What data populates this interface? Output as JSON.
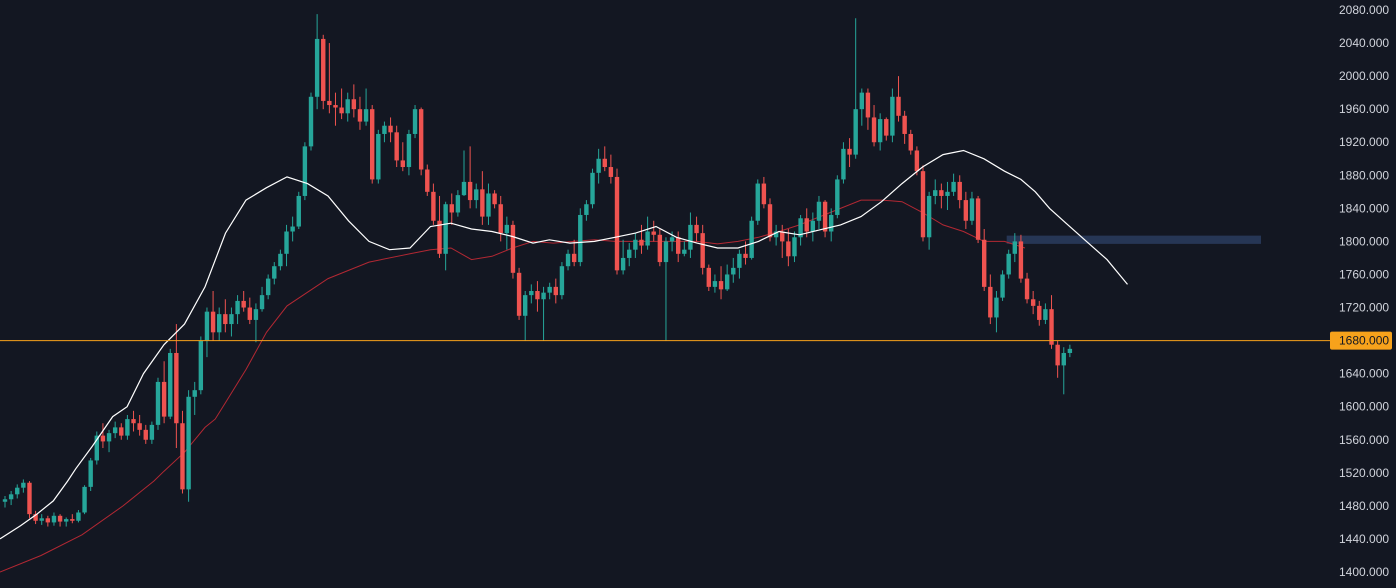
{
  "colors": {
    "background": "#131722",
    "up": "#26a69a",
    "down": "#ef5350",
    "ma_fast": "#ffffff",
    "ma_slow": "#b22833",
    "horizontal_line": "#f7a21b",
    "zone": "#2a3c5e",
    "axis_text": "#d1d4dc"
  },
  "chart_data": {
    "type": "candlestick",
    "y_axis": {
      "position": "right",
      "ticks": [
        "2080.000",
        "2040.000",
        "2000.000",
        "1960.000",
        "1920.000",
        "1880.000",
        "1840.000",
        "1800.000",
        "1760.000",
        "1720.000",
        "1680.000",
        "1640.000",
        "1600.000",
        "1560.000",
        "1520.000",
        "1480.000",
        "1440.000",
        "1400.000"
      ],
      "range": [
        1395,
        2088
      ]
    },
    "horizontal_line": {
      "price": 1680,
      "label": "1680.000"
    },
    "zone": {
      "from_candle": 164,
      "to_candle": 200,
      "low": 1797,
      "high": 1807
    },
    "candles": [
      [
        1485,
        1492,
        1478,
        1488
      ],
      [
        1488,
        1498,
        1481,
        1494
      ],
      [
        1494,
        1506,
        1489,
        1502
      ],
      [
        1502,
        1512,
        1496,
        1508
      ],
      [
        1508,
        1510,
        1465,
        1470
      ],
      [
        1470,
        1474,
        1458,
        1462
      ],
      [
        1462,
        1470,
        1457,
        1465
      ],
      [
        1465,
        1468,
        1455,
        1460
      ],
      [
        1460,
        1472,
        1456,
        1468
      ],
      [
        1468,
        1470,
        1455,
        1461
      ],
      [
        1461,
        1466,
        1455,
        1464
      ],
      [
        1464,
        1470,
        1459,
        1462
      ],
      [
        1462,
        1475,
        1460,
        1472
      ],
      [
        1472,
        1505,
        1470,
        1503
      ],
      [
        1503,
        1538,
        1498,
        1535
      ],
      [
        1535,
        1570,
        1530,
        1565
      ],
      [
        1565,
        1580,
        1550,
        1558
      ],
      [
        1558,
        1572,
        1545,
        1568
      ],
      [
        1568,
        1582,
        1562,
        1575
      ],
      [
        1575,
        1580,
        1560,
        1565
      ],
      [
        1565,
        1590,
        1560,
        1585
      ],
      [
        1585,
        1595,
        1570,
        1580
      ],
      [
        1580,
        1590,
        1565,
        1572
      ],
      [
        1572,
        1578,
        1555,
        1560
      ],
      [
        1560,
        1582,
        1555,
        1578
      ],
      [
        1578,
        1635,
        1572,
        1630
      ],
      [
        1630,
        1655,
        1580,
        1588
      ],
      [
        1588,
        1670,
        1585,
        1665
      ],
      [
        1665,
        1700,
        1550,
        1580
      ],
      [
        1580,
        1595,
        1495,
        1500
      ],
      [
        1500,
        1620,
        1485,
        1612
      ],
      [
        1612,
        1630,
        1590,
        1620
      ],
      [
        1620,
        1685,
        1615,
        1680
      ],
      [
        1680,
        1720,
        1660,
        1715
      ],
      [
        1715,
        1740,
        1680,
        1690
      ],
      [
        1690,
        1720,
        1680,
        1712
      ],
      [
        1712,
        1730,
        1690,
        1700
      ],
      [
        1700,
        1720,
        1685,
        1712
      ],
      [
        1712,
        1735,
        1700,
        1728
      ],
      [
        1728,
        1740,
        1715,
        1720
      ],
      [
        1720,
        1732,
        1700,
        1705
      ],
      [
        1705,
        1725,
        1678,
        1718
      ],
      [
        1718,
        1745,
        1715,
        1735
      ],
      [
        1735,
        1760,
        1730,
        1755
      ],
      [
        1755,
        1775,
        1748,
        1770
      ],
      [
        1770,
        1790,
        1765,
        1785
      ],
      [
        1785,
        1820,
        1770,
        1812
      ],
      [
        1812,
        1830,
        1800,
        1818
      ],
      [
        1818,
        1860,
        1815,
        1855
      ],
      [
        1855,
        1920,
        1850,
        1915
      ],
      [
        1915,
        1980,
        1910,
        1975
      ],
      [
        1975,
        2075,
        1960,
        2045
      ],
      [
        2045,
        2050,
        1960,
        1970
      ],
      [
        1970,
        2040,
        1955,
        1965
      ],
      [
        1965,
        1980,
        1940,
        1962
      ],
      [
        1962,
        1985,
        1948,
        1955
      ],
      [
        1955,
        1980,
        1945,
        1972
      ],
      [
        1972,
        1990,
        1950,
        1960
      ],
      [
        1960,
        1975,
        1935,
        1945
      ],
      [
        1945,
        1985,
        1940,
        1960
      ],
      [
        1960,
        1965,
        1870,
        1875
      ],
      [
        1875,
        1935,
        1870,
        1930
      ],
      [
        1930,
        1945,
        1920,
        1940
      ],
      [
        1940,
        1950,
        1920,
        1932
      ],
      [
        1932,
        1940,
        1890,
        1898
      ],
      [
        1898,
        1920,
        1885,
        1890
      ],
      [
        1890,
        1935,
        1880,
        1930
      ],
      [
        1930,
        1965,
        1925,
        1960
      ],
      [
        1960,
        1962,
        1880,
        1887
      ],
      [
        1887,
        1893,
        1855,
        1860
      ],
      [
        1860,
        1870,
        1820,
        1825
      ],
      [
        1825,
        1855,
        1780,
        1785
      ],
      [
        1785,
        1848,
        1765,
        1845
      ],
      [
        1845,
        1858,
        1820,
        1835
      ],
      [
        1835,
        1862,
        1830,
        1856
      ],
      [
        1856,
        1910,
        1855,
        1872
      ],
      [
        1872,
        1915,
        1840,
        1850
      ],
      [
        1850,
        1870,
        1840,
        1863
      ],
      [
        1863,
        1885,
        1820,
        1830
      ],
      [
        1830,
        1870,
        1820,
        1858
      ],
      [
        1858,
        1862,
        1840,
        1845
      ],
      [
        1845,
        1855,
        1800,
        1810
      ],
      [
        1810,
        1830,
        1790,
        1820
      ],
      [
        1820,
        1825,
        1755,
        1762
      ],
      [
        1762,
        1768,
        1705,
        1710
      ],
      [
        1710,
        1740,
        1680,
        1735
      ],
      [
        1735,
        1748,
        1725,
        1740
      ],
      [
        1740,
        1752,
        1715,
        1730
      ],
      [
        1730,
        1745,
        1680,
        1738
      ],
      [
        1738,
        1750,
        1730,
        1745
      ],
      [
        1745,
        1755,
        1725,
        1735
      ],
      [
        1735,
        1775,
        1730,
        1770
      ],
      [
        1770,
        1790,
        1765,
        1785
      ],
      [
        1785,
        1802,
        1770,
        1775
      ],
      [
        1775,
        1840,
        1770,
        1832
      ],
      [
        1832,
        1850,
        1825,
        1845
      ],
      [
        1845,
        1888,
        1840,
        1883
      ],
      [
        1883,
        1912,
        1870,
        1900
      ],
      [
        1900,
        1915,
        1885,
        1890
      ],
      [
        1890,
        1905,
        1870,
        1878
      ],
      [
        1878,
        1888,
        1760,
        1765
      ],
      [
        1765,
        1802,
        1760,
        1780
      ],
      [
        1780,
        1798,
        1770,
        1790
      ],
      [
        1790,
        1810,
        1780,
        1802
      ],
      [
        1802,
        1820,
        1785,
        1795
      ],
      [
        1795,
        1830,
        1790,
        1812
      ],
      [
        1812,
        1825,
        1800,
        1808
      ],
      [
        1808,
        1815,
        1770,
        1775
      ],
      [
        1775,
        1805,
        1680,
        1800
      ],
      [
        1800,
        1812,
        1788,
        1805
      ],
      [
        1805,
        1812,
        1775,
        1785
      ],
      [
        1785,
        1800,
        1782,
        1790
      ],
      [
        1790,
        1835,
        1780,
        1820
      ],
      [
        1820,
        1830,
        1800,
        1810
      ],
      [
        1810,
        1820,
        1760,
        1768
      ],
      [
        1768,
        1772,
        1740,
        1745
      ],
      [
        1745,
        1760,
        1738,
        1752
      ],
      [
        1752,
        1770,
        1730,
        1742
      ],
      [
        1742,
        1772,
        1740,
        1760
      ],
      [
        1760,
        1780,
        1750,
        1768
      ],
      [
        1768,
        1790,
        1755,
        1785
      ],
      [
        1785,
        1800,
        1772,
        1780
      ],
      [
        1780,
        1830,
        1778,
        1825
      ],
      [
        1825,
        1875,
        1820,
        1870
      ],
      [
        1870,
        1878,
        1840,
        1845
      ],
      [
        1845,
        1852,
        1800,
        1805
      ],
      [
        1805,
        1820,
        1795,
        1812
      ],
      [
        1812,
        1820,
        1780,
        1800
      ],
      [
        1800,
        1815,
        1770,
        1782
      ],
      [
        1782,
        1812,
        1775,
        1805
      ],
      [
        1805,
        1832,
        1795,
        1828
      ],
      [
        1828,
        1840,
        1805,
        1812
      ],
      [
        1812,
        1835,
        1800,
        1825
      ],
      [
        1825,
        1855,
        1815,
        1848
      ],
      [
        1848,
        1850,
        1805,
        1812
      ],
      [
        1812,
        1840,
        1800,
        1832
      ],
      [
        1832,
        1880,
        1828,
        1875
      ],
      [
        1875,
        1920,
        1870,
        1912
      ],
      [
        1912,
        1925,
        1890,
        1905
      ],
      [
        1905,
        2070,
        1900,
        1960
      ],
      [
        1960,
        1985,
        1940,
        1980
      ],
      [
        1980,
        1985,
        1935,
        1950
      ],
      [
        1950,
        1965,
        1915,
        1920
      ],
      [
        1920,
        1955,
        1910,
        1948
      ],
      [
        1948,
        1950,
        1922,
        1928
      ],
      [
        1928,
        1985,
        1920,
        1975
      ],
      [
        1975,
        2000,
        1945,
        1952
      ],
      [
        1952,
        1958,
        1918,
        1930
      ],
      [
        1930,
        1935,
        1905,
        1910
      ],
      [
        1910,
        1915,
        1880,
        1885
      ],
      [
        1885,
        1892,
        1800,
        1805
      ],
      [
        1805,
        1860,
        1790,
        1855
      ],
      [
        1855,
        1875,
        1845,
        1862
      ],
      [
        1862,
        1870,
        1840,
        1855
      ],
      [
        1855,
        1872,
        1838,
        1860
      ],
      [
        1860,
        1882,
        1855,
        1872
      ],
      [
        1872,
        1880,
        1840,
        1850
      ],
      [
        1850,
        1860,
        1815,
        1825
      ],
      [
        1825,
        1860,
        1820,
        1852
      ],
      [
        1852,
        1855,
        1798,
        1802
      ],
      [
        1802,
        1815,
        1740,
        1745
      ],
      [
        1745,
        1760,
        1700,
        1708
      ],
      [
        1708,
        1740,
        1690,
        1732
      ],
      [
        1732,
        1765,
        1728,
        1760
      ],
      [
        1760,
        1790,
        1755,
        1785
      ],
      [
        1785,
        1810,
        1775,
        1800
      ],
      [
        1800,
        1808,
        1750,
        1755
      ],
      [
        1755,
        1762,
        1725,
        1730
      ],
      [
        1730,
        1740,
        1712,
        1722
      ],
      [
        1722,
        1728,
        1698,
        1705
      ],
      [
        1705,
        1725,
        1700,
        1718
      ],
      [
        1718,
        1735,
        1670,
        1675
      ],
      [
        1675,
        1680,
        1635,
        1650
      ],
      [
        1650,
        1672,
        1615,
        1665
      ],
      [
        1665,
        1675,
        1660,
        1670
      ]
    ],
    "ma_fast": [
      [
        0,
        1440
      ],
      [
        10,
        1456
      ],
      [
        18,
        1470
      ],
      [
        26,
        1486
      ],
      [
        33,
        1510
      ],
      [
        37,
        1525
      ],
      [
        45,
        1552
      ],
      [
        55,
        1588
      ],
      [
        62,
        1600
      ],
      [
        70,
        1640
      ],
      [
        80,
        1675
      ],
      [
        90,
        1700
      ],
      [
        100,
        1745
      ],
      [
        110,
        1810
      ],
      [
        120,
        1850
      ],
      [
        130,
        1865
      ],
      [
        140,
        1878
      ],
      [
        150,
        1870
      ],
      [
        160,
        1855
      ],
      [
        170,
        1825
      ],
      [
        180,
        1800
      ],
      [
        190,
        1790
      ],
      [
        200,
        1792
      ],
      [
        210,
        1818
      ],
      [
        220,
        1822
      ],
      [
        230,
        1815
      ],
      [
        240,
        1812
      ],
      [
        250,
        1806
      ],
      [
        260,
        1798
      ],
      [
        268,
        1802
      ],
      [
        278,
        1798
      ],
      [
        290,
        1800
      ],
      [
        300,
        1805
      ],
      [
        310,
        1810
      ],
      [
        320,
        1818
      ],
      [
        330,
        1805
      ],
      [
        340,
        1798
      ],
      [
        350,
        1792
      ],
      [
        360,
        1792
      ],
      [
        370,
        1800
      ],
      [
        380,
        1812
      ],
      [
        390,
        1808
      ],
      [
        400,
        1814
      ],
      [
        410,
        1820
      ],
      [
        420,
        1830
      ],
      [
        430,
        1848
      ],
      [
        440,
        1870
      ],
      [
        450,
        1890
      ],
      [
        460,
        1905
      ],
      [
        470,
        1910
      ],
      [
        480,
        1900
      ],
      [
        490,
        1885
      ],
      [
        498,
        1875
      ],
      [
        505,
        1860
      ],
      [
        512,
        1840
      ],
      [
        520,
        1822
      ],
      [
        530,
        1800
      ],
      [
        540,
        1778
      ],
      [
        550,
        1748
      ]
    ],
    "ma_slow": [
      [
        0,
        1400
      ],
      [
        20,
        1420
      ],
      [
        40,
        1445
      ],
      [
        60,
        1480
      ],
      [
        70,
        1500
      ],
      [
        75,
        1510
      ],
      [
        80,
        1522
      ],
      [
        90,
        1545
      ],
      [
        100,
        1575
      ],
      [
        105,
        1585
      ],
      [
        110,
        1605
      ],
      [
        120,
        1645
      ],
      [
        130,
        1690
      ],
      [
        140,
        1722
      ],
      [
        160,
        1755
      ],
      [
        180,
        1775
      ],
      [
        200,
        1785
      ],
      [
        210,
        1790
      ],
      [
        220,
        1792
      ],
      [
        230,
        1778
      ],
      [
        240,
        1782
      ],
      [
        250,
        1792
      ],
      [
        260,
        1800
      ],
      [
        270,
        1798
      ],
      [
        280,
        1800
      ],
      [
        290,
        1802
      ],
      [
        300,
        1800
      ],
      [
        310,
        1800
      ],
      [
        320,
        1800
      ],
      [
        330,
        1800
      ],
      [
        340,
        1800
      ],
      [
        350,
        1797
      ],
      [
        360,
        1800
      ],
      [
        370,
        1805
      ],
      [
        380,
        1812
      ],
      [
        390,
        1820
      ],
      [
        400,
        1830
      ],
      [
        410,
        1840
      ],
      [
        420,
        1850
      ],
      [
        430,
        1850
      ],
      [
        440,
        1848
      ],
      [
        450,
        1835
      ],
      [
        460,
        1820
      ],
      [
        470,
        1812
      ],
      [
        480,
        1800
      ],
      [
        490,
        1800
      ],
      [
        500,
        1792
      ]
    ]
  }
}
